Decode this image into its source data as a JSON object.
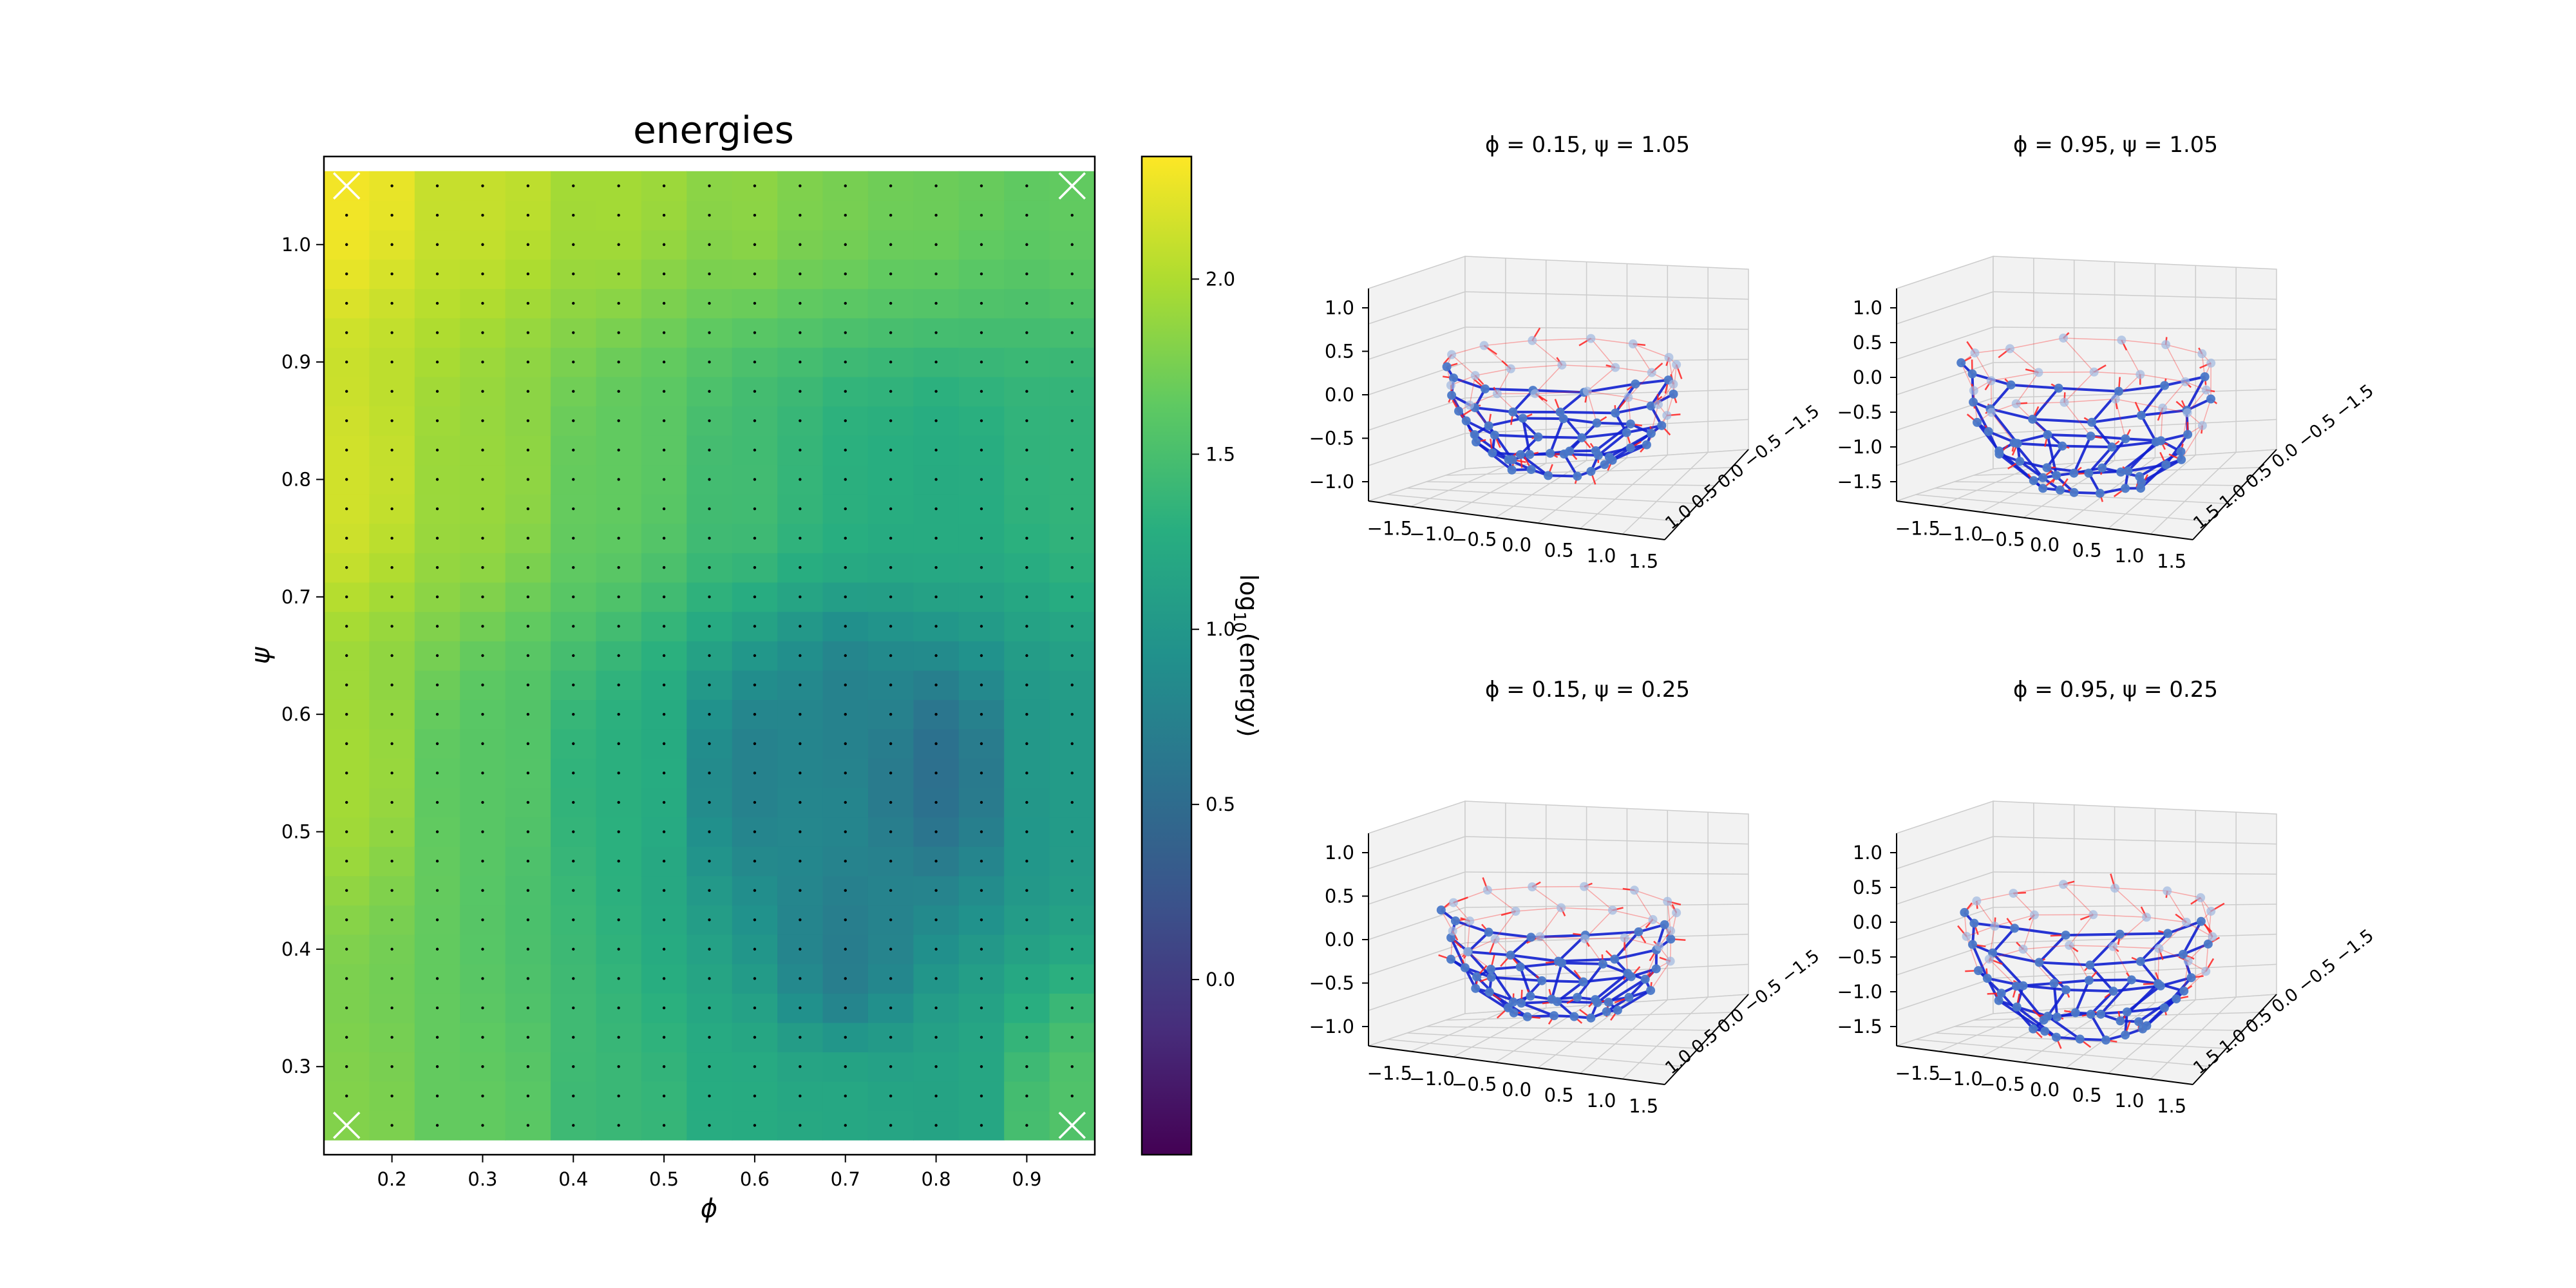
{
  "heatmap": {
    "title": "energies",
    "xlabel": "ϕ",
    "ylabel": "ψ",
    "xticks": [
      "0.2",
      "0.3",
      "0.4",
      "0.5",
      "0.6",
      "0.7",
      "0.8",
      "0.9"
    ],
    "yticks": [
      "0.3",
      "0.4",
      "0.5",
      "0.6",
      "0.7",
      "0.8",
      "0.9",
      "1.0"
    ],
    "colorbar": {
      "label_main": "log",
      "label_sub": "10",
      "label_rest": "(energy)",
      "ticks": [
        "0.0",
        "0.5",
        "1.0",
        "1.5",
        "2.0"
      ]
    }
  },
  "panels": [
    {
      "title": "ϕ = 0.15, ψ = 1.05",
      "zticks": [
        "1.0",
        "0.5",
        "0.0",
        "−0.5",
        "−1.0"
      ],
      "xticks": [
        "−1.5",
        "−1.0",
        "−0.5",
        "0.0",
        "0.5",
        "1.0",
        "1.5"
      ],
      "ytick_label": "1.0 0.5 0.0 −0.5 −1.5"
    },
    {
      "title": "ϕ = 0.95, ψ = 1.05",
      "zticks": [
        "1.0",
        "0.5",
        "0.0",
        "−0.5",
        "−1.0",
        "−1.5"
      ],
      "xticks": [
        "−1.5",
        "−1.0",
        "−0.5",
        "0.0",
        "0.5",
        "1.0",
        "1.5"
      ],
      "ytick_label": "1.5 1.0 0.5 0.0 −0.5 −1.5"
    },
    {
      "title": "ϕ = 0.15, ψ = 0.25",
      "zticks": [
        "1.0",
        "0.5",
        "0.0",
        "−0.5",
        "−1.0"
      ],
      "xticks": [
        "−1.5",
        "−1.0",
        "−0.5",
        "0.0",
        "0.5",
        "1.0",
        "1.5"
      ],
      "ytick_label": "1.0 0.5 0.0 −0.5 −1.5"
    },
    {
      "title": "ϕ = 0.95, ψ = 0.25",
      "zticks": [
        "1.0",
        "0.5",
        "0.0",
        "−0.5",
        "−1.0",
        "−1.5"
      ],
      "xticks": [
        "−1.5",
        "−1.0",
        "−0.5",
        "0.0",
        "0.5",
        "1.0",
        "1.5"
      ],
      "ytick_label": "1.5 1.0 0.5 0.0 −0.5 −1.5"
    }
  ],
  "chart_data": [
    {
      "type": "heatmap",
      "title": "energies",
      "xlabel": "ϕ",
      "ylabel": "ψ",
      "xlim": [
        0.125,
        0.975
      ],
      "ylim": [
        0.225,
        1.075
      ],
      "x_start": 0.15,
      "x_step": 0.05,
      "nx": 17,
      "y_start": 0.25,
      "y_step": 0.025,
      "ny": 33,
      "colorbar_label": "log10(energy)",
      "colorbar_range": [
        -0.5,
        2.35
      ],
      "colormap": "viridis",
      "model_points": [
        [
          0.15,
          1.05,
          2.3
        ],
        [
          0.15,
          0.8,
          2.15
        ],
        [
          0.15,
          0.55,
          1.95
        ],
        [
          0.15,
          0.25,
          1.8
        ],
        [
          0.3,
          1.05,
          2.1
        ],
        [
          0.3,
          0.8,
          1.9
        ],
        [
          0.3,
          0.55,
          1.6
        ],
        [
          0.3,
          0.25,
          1.65
        ],
        [
          0.45,
          1.05,
          1.95
        ],
        [
          0.45,
          0.8,
          1.65
        ],
        [
          0.45,
          0.55,
          1.3
        ],
        [
          0.45,
          0.25,
          1.4
        ],
        [
          0.6,
          1.05,
          1.85
        ],
        [
          0.6,
          0.8,
          1.45
        ],
        [
          0.6,
          0.55,
          0.75
        ],
        [
          0.6,
          0.25,
          1.25
        ],
        [
          0.7,
          1.05,
          1.75
        ],
        [
          0.7,
          0.8,
          1.3
        ],
        [
          0.7,
          0.6,
          0.75
        ],
        [
          0.7,
          0.4,
          0.7
        ],
        [
          0.7,
          0.25,
          1.2
        ],
        [
          0.8,
          1.05,
          1.7
        ],
        [
          0.8,
          0.8,
          1.25
        ],
        [
          0.8,
          0.55,
          0.55
        ],
        [
          0.8,
          0.25,
          1.15
        ],
        [
          0.95,
          1.05,
          1.65
        ],
        [
          0.95,
          0.8,
          1.35
        ],
        [
          0.95,
          0.55,
          1.05
        ],
        [
          0.95,
          0.25,
          1.55
        ]
      ],
      "markers": [
        [
          0.15,
          1.05
        ],
        [
          0.95,
          1.05
        ],
        [
          0.15,
          0.25
        ],
        [
          0.95,
          0.25
        ]
      ]
    },
    {
      "type": "scatter3d",
      "title": "ϕ = 0.15, ψ = 1.05",
      "zlim": [
        -1.0,
        1.0
      ]
    },
    {
      "type": "scatter3d",
      "title": "ϕ = 0.95, ψ = 1.05",
      "zlim": [
        -1.5,
        1.0
      ]
    },
    {
      "type": "scatter3d",
      "title": "ϕ = 0.15, ψ = 0.25",
      "zlim": [
        -1.0,
        1.0
      ]
    },
    {
      "type": "scatter3d",
      "title": "ϕ = 0.95, ψ = 0.25",
      "zlim": [
        -1.5,
        1.0
      ]
    }
  ],
  "colors": {
    "marker": "#ffffff",
    "mesh_dark": "#1020d0",
    "mesh_light": "#4a78c8",
    "vector": "#ff2020",
    "pane": "#f2f2f2",
    "grid": "#cccccc"
  }
}
